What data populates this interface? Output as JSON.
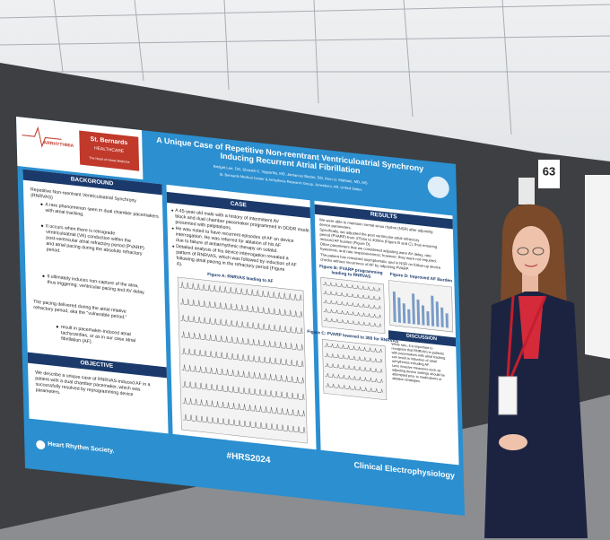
{
  "board": {
    "number": "63"
  },
  "poster": {
    "logos": [
      "ARRHYTHMIA",
      "St. Bernards",
      "HEALTHCARE",
      "The Heart of Great Medicine"
    ],
    "title": "A Unique Case of Repetitive Non-reentrant Ventriculoatrial Synchrony Inducing Recurrent Atrial Fibrillation",
    "authors": "Bridget Lee, DO, Sharath C. Vipparthy, MD, Jamarcus Binder, DO, Arun U. Mahtani, MD, MS",
    "affiliation": "St. Bernards Medical Center & Arrhythmia Research Group, Jonesboro, AR, United States",
    "background": {
      "heading": "BACKGROUND",
      "intro": "Repetitive Non-reentrant Ventriculoatrial Synchrony (RNRVAS)",
      "points": [
        "A rare phenomenon seen in dual chamber pacemakers with atrial tracking.",
        "It occurs when there is retrograde ventriculoatrial (VA) conduction within the post-ventricular atrial refractory period (PVARP) and atrial pacing during the absolute refractory period.",
        "It ultimately induces non-capture of the atria, thus triggering: ventricular pacing and AV delay."
      ],
      "note": "The pacing delivered during the atrial relative refractory period, aka the \"vulnerable period,\"",
      "result": "result in pacemaker-induced atrial tachycardias, or as in our case atrial fibrillation (AF)."
    },
    "objective": {
      "heading": "OBJECTIVE",
      "text": "We describe a unique case of RNRVAS-induced AF in a patient with a dual chamber pacemaker, which was successfully resolved by reprogramming device parameters."
    },
    "case": {
      "heading": "CASE",
      "points": [
        "A 45-year-old male with a history of intermittent AV block and dual chamber pacemaker programmed in DDDR mode presented with palpitations.",
        "He was noted to have recurrent episodes of AF on device interrogation. He was referred for ablation of his AF due to failure of antiarrhythmic therapy on sotalol.",
        "Detailed analysis of his device interrogation revealed a pattern of RNRVAS, which was followed by induction of AF following atrial pacing in the refractory period (Figure A)."
      ]
    },
    "results": {
      "heading": "RESULTS",
      "points": [
        "We were able to maintain normal sinus rhythm (NSR) after adjusting device parameters.",
        "Specifically, we adjusted the post ventricular atrial refractory period (PVARP) from 375ms to 300ms (Figure B and C), thus ensuring reduced AF burden (Figure D).",
        "Other parameters that we considered adjusting were AV delay, rate hysteresis, and rate responsiveness; however, they were not required.",
        "The patient has remained asymptomatic and in NSR on follow-up device checks without recurrence of AF by adjusting PVARP."
      ]
    },
    "figures": [
      "Figure A: RNRVAS leading to AF",
      "Figure B: PVARP programming leading to RNRVAS",
      "Figure C: PVARP lowered to 300 for RNRVAS",
      "Figure D: Improved AF Burden"
    ],
    "discussion": {
      "heading": "DISCUSSION",
      "points": [
        "While rare, it is important to recognize that RNRVAS in patients with pacemakers with atrial tracking can result in induction of atrial arrhythmias including AF.",
        "Less invasive measures such as adjusting device settings should be attempted prior to medications or ablation strategies."
      ]
    },
    "footer": {
      "society": "Heart Rhythm Society.",
      "hashtag": "#HRS2024",
      "track": "Clinical Electrophysiology"
    }
  }
}
